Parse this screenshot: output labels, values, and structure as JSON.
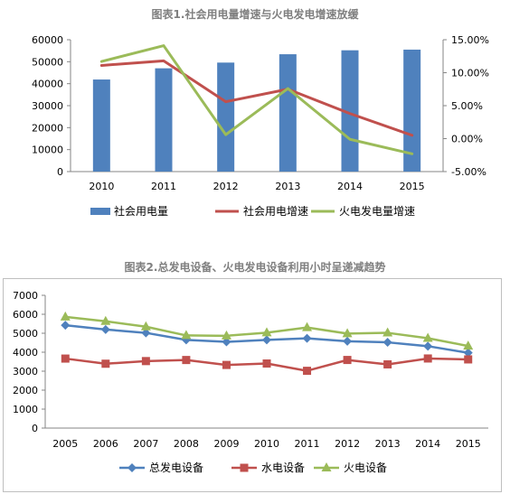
{
  "chart_data": [
    {
      "type": "bar+line",
      "title": "图表1.社会用电量增速与火电发电增速放缓",
      "categories": [
        "2010",
        "2011",
        "2012",
        "2013",
        "2014",
        "2015"
      ],
      "ylim_left": [
        0,
        60000
      ],
      "yticks_left": [
        "0",
        "10000",
        "20000",
        "30000",
        "40000",
        "50000",
        "60000"
      ],
      "ylim_right": [
        -5,
        15
      ],
      "yticks_right": [
        "-5.00%",
        "0.00%",
        "5.00%",
        "10.00%",
        "15.00%"
      ],
      "grid": false,
      "legend_position": "bottom",
      "series": [
        {
          "name": "社会用电量",
          "type": "bar",
          "axis": "left",
          "color": "#4f81bd",
          "values": [
            41900,
            47000,
            49600,
            53400,
            55200,
            55500
          ]
        },
        {
          "name": "社会用电增速",
          "type": "line",
          "axis": "right",
          "color": "#c0504d",
          "values": [
            11.1,
            11.8,
            5.6,
            7.5,
            3.8,
            0.5
          ]
        },
        {
          "name": "火电发电量增速",
          "type": "line",
          "axis": "right",
          "color": "#9bbb59",
          "values": [
            11.7,
            14.1,
            0.6,
            7.6,
            -0.1,
            -2.3
          ]
        }
      ]
    },
    {
      "type": "line",
      "title": "图表2.总发电设备、火电发电设备利用小时呈递减趋势",
      "categories": [
        "2005",
        "2006",
        "2007",
        "2008",
        "2009",
        "2010",
        "2011",
        "2012",
        "2013",
        "2014",
        "2015"
      ],
      "ylim": [
        0,
        7000
      ],
      "yticks": [
        "0",
        "1000",
        "2000",
        "3000",
        "4000",
        "5000",
        "6000",
        "7000"
      ],
      "grid": false,
      "legend_position": "bottom",
      "series": [
        {
          "name": "总发电设备",
          "marker": "diamond",
          "color": "#4f81bd",
          "values": [
            5425,
            5198,
            5020,
            4648,
            4546,
            4650,
            4730,
            4579,
            4521,
            4318,
            3969
          ]
        },
        {
          "name": "水电设备",
          "marker": "square",
          "color": "#c0504d",
          "values": [
            3664,
            3393,
            3532,
            3589,
            3328,
            3404,
            3019,
            3591,
            3359,
            3669,
            3621
          ]
        },
        {
          "name": "火电设备",
          "marker": "triangle",
          "color": "#9bbb59",
          "values": [
            5865,
            5633,
            5344,
            4885,
            4865,
            5031,
            5305,
            4982,
            5021,
            4739,
            4329
          ]
        }
      ]
    }
  ]
}
